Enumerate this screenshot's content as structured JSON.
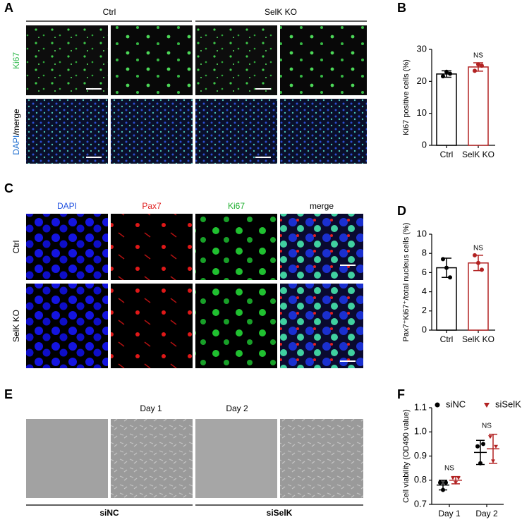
{
  "panel_labels": [
    "A",
    "B",
    "C",
    "D",
    "E",
    "F"
  ],
  "panel_a": {
    "groups": [
      "Ctrl",
      "SelK KO"
    ],
    "row_labels": [
      [
        "Ki67"
      ],
      [
        "DAPI",
        "/merge"
      ]
    ]
  },
  "panel_c": {
    "columns": [
      "DAPI",
      "Pax7",
      "Ki67",
      "merge"
    ],
    "rows": [
      "Ctrl",
      "SelK KO"
    ]
  },
  "panel_e": {
    "columns": [
      "Day 1",
      "Day 2"
    ],
    "groups": [
      "siNC",
      "siSelK"
    ]
  },
  "chart_data": [
    {
      "type": "bar",
      "ylabel": "Ki67 positive cells (%)",
      "categories": [
        "Ctrl",
        "SelK KO"
      ],
      "colors": [
        "#000000",
        "#b22222"
      ],
      "values": [
        22.3,
        24.5
      ],
      "errors": [
        1.0,
        1.3
      ],
      "points": [
        [
          21.6,
          23.0,
          22.4
        ],
        [
          23.3,
          25.3,
          24.9
        ]
      ],
      "significance": [
        null,
        "NS"
      ],
      "ylim": [
        0,
        30
      ],
      "yticks": [
        0,
        10,
        20,
        30
      ]
    },
    {
      "type": "bar",
      "ylabel": "Pax7⁺Ki67⁺/total nucleus cells (%)",
      "categories": [
        "Ctrl",
        "SelK KO"
      ],
      "colors": [
        "#000000",
        "#b22222"
      ],
      "values": [
        6.5,
        7.0
      ],
      "errors": [
        1.0,
        0.8
      ],
      "points": [
        [
          7.4,
          6.5,
          5.5
        ],
        [
          7.8,
          7.0,
          6.3
        ]
      ],
      "significance": [
        null,
        "NS"
      ],
      "ylim": [
        0,
        10
      ],
      "yticks": [
        0,
        2,
        4,
        6,
        8,
        10
      ]
    },
    {
      "type": "dot",
      "ylabel": "Cell viability (OD490 value)",
      "categories": [
        "Day 1",
        "Day 2"
      ],
      "series": [
        {
          "name": "siNC",
          "color": "#000000",
          "values": [
            0.78,
            0.915
          ],
          "errors": [
            0.02,
            0.05
          ],
          "points": [
            [
              0.79,
              0.76,
              0.79
            ],
            [
              0.94,
              0.87,
              0.95
            ]
          ]
        },
        {
          "name": "siSelK",
          "color": "#b22222",
          "values": [
            0.8,
            0.93
          ],
          "errors": [
            0.015,
            0.06
          ],
          "points": [
            [
              0.81,
              0.79,
              0.81
            ],
            [
              0.98,
              0.88,
              0.94
            ]
          ]
        }
      ],
      "significance": [
        "NS",
        "NS"
      ],
      "ylim": [
        0.7,
        1.1
      ],
      "yticks": [
        0.7,
        0.8,
        0.9,
        {
          "value": 1,
          "label": "1.0"
        },
        1.1
      ]
    }
  ]
}
